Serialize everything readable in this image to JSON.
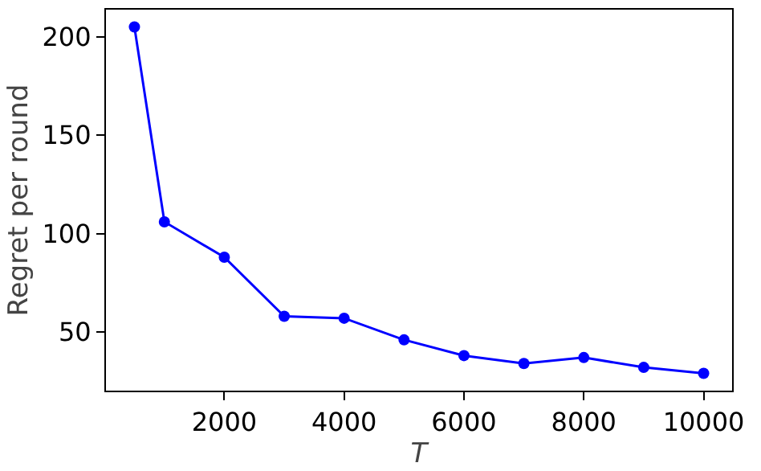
{
  "chart_data": {
    "type": "line",
    "xlabel": "T",
    "ylabel": "Regret per round",
    "x": [
      500,
      1000,
      2000,
      3000,
      4000,
      5000,
      6000,
      7000,
      8000,
      9000,
      10000
    ],
    "series": [
      {
        "color": "#0000ff",
        "values": [
          205,
          106,
          88,
          58,
          57,
          46,
          38,
          34,
          37,
          32,
          29
        ]
      }
    ],
    "xlim": [
      25,
      10475
    ],
    "xticks": [
      2000,
      4000,
      6000,
      8000,
      10000
    ],
    "ylim": [
      20.2,
      213.8
    ],
    "yticks": [
      50,
      100,
      150,
      200
    ],
    "grid": false,
    "legend": false,
    "marker": "circle",
    "line_style": "solid"
  }
}
